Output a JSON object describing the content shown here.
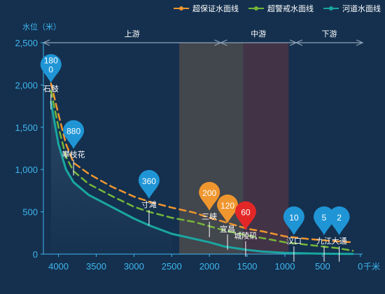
{
  "chart_data": {
    "type": "line",
    "ylabel": "水位（米）",
    "xunit": "千米",
    "xlim": [
      4200,
      -30
    ],
    "ylim": [
      0,
      2500
    ],
    "xticks": [
      4000,
      3500,
      3000,
      2500,
      2000,
      1500,
      1000,
      500,
      0
    ],
    "yticks": [
      0,
      500,
      1000,
      1500,
      2000,
      2500
    ],
    "ytick_labels": [
      "0",
      "500",
      "1,000",
      "1,500",
      "2,000",
      "2,500"
    ],
    "legend_position": "top-right",
    "series": [
      {
        "name": "超保证水面线",
        "color": "#f0962f",
        "dashed": true,
        "x": [
          4100,
          4000,
          3900,
          3800,
          3600,
          3300,
          3000,
          2800,
          2500,
          2200,
          2000,
          1800,
          1500,
          1300,
          1000,
          700,
          500,
          300,
          100
        ],
        "y": [
          2020,
          1650,
          1300,
          1080,
          950,
          800,
          680,
          620,
          550,
          490,
          430,
          380,
          300,
          270,
          210,
          180,
          165,
          150,
          140
        ]
      },
      {
        "name": "超警戒水面线",
        "color": "#76b63a",
        "dashed": true,
        "x": [
          4100,
          4000,
          3900,
          3800,
          3600,
          3300,
          3000,
          2800,
          2500,
          2200,
          2000,
          1800,
          1500,
          1300,
          1000,
          700,
          500,
          300,
          100
        ],
        "y": [
          1930,
          1500,
          1150,
          980,
          830,
          690,
          560,
          500,
          430,
          380,
          330,
          280,
          220,
          190,
          140,
          110,
          90,
          70,
          40
        ]
      },
      {
        "name": "河道水面线",
        "color": "#1aa6a0",
        "dashed": false,
        "x": [
          4100,
          4000,
          3900,
          3800,
          3600,
          3300,
          3000,
          2800,
          2500,
          2200,
          2000,
          1800,
          1500,
          1300,
          1000,
          700,
          500,
          300,
          100
        ],
        "y": [
          1800,
          1300,
          1000,
          850,
          700,
          560,
          420,
          340,
          240,
          180,
          140,
          90,
          50,
          30,
          15,
          8,
          5,
          3,
          2
        ]
      }
    ],
    "regions": [
      {
        "label": "上游",
        "from": 4200,
        "to": 1850
      },
      {
        "label": "中游",
        "from": 1850,
        "to": 850
      },
      {
        "label": "下游",
        "from": 850,
        "to": -30
      }
    ],
    "bands": [
      {
        "from": 2400,
        "to": 1550,
        "color": "#4a4a4e"
      },
      {
        "from": 1550,
        "to": 950,
        "color": "#4a3446"
      }
    ],
    "stations": [
      {
        "name": "石鼓",
        "value": "1800",
        "x": 4100,
        "y": 2240,
        "color": "#1f95d6"
      },
      {
        "name": "攀枝花",
        "value": "880",
        "x": 3800,
        "y": 1460,
        "color": "#1f95d6"
      },
      {
        "name": "寸滩",
        "value": "360",
        "x": 2800,
        "y": 870,
        "color": "#1f95d6"
      },
      {
        "name": "三峡",
        "value": "200",
        "x": 2000,
        "y": 730,
        "color": "#f0962f"
      },
      {
        "name": "宜昌",
        "value": "120",
        "x": 1760,
        "y": 580,
        "color": "#f0962f"
      },
      {
        "name": "城陵矶",
        "value": "60",
        "x": 1520,
        "y": 500,
        "color": "#e32727"
      },
      {
        "name": "汉口",
        "value": "10",
        "x": 880,
        "y": 440,
        "color": "#1f95d6"
      },
      {
        "name": "九江",
        "value": "5",
        "x": 480,
        "y": 440,
        "color": "#1f95d6"
      },
      {
        "name": "大通",
        "value": "2",
        "x": 280,
        "y": 440,
        "color": "#1f95d6"
      }
    ]
  }
}
